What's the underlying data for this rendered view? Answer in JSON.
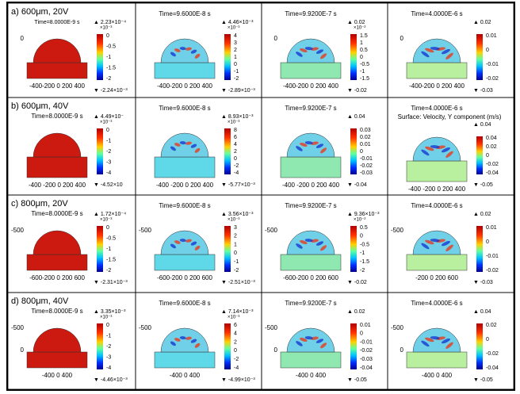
{
  "rows": [
    {
      "label": "a) 600μm, 20V",
      "panels": [
        {
          "time": "Time=8.0000E-9 s",
          "max": "▲ 2.23×10⁻⁴",
          "exp": "×10⁻³",
          "ticks": [
            "0",
            "-0.5",
            "-1",
            "-1.5",
            "-2"
          ],
          "min": "▼ -2.24×10⁻³",
          "yticks": [
            "0"
          ],
          "xticks": "-400-200 0 200 400"
        },
        {
          "time": "Time=9.6000E-8 s",
          "max": "▲ 4.46×10⁻³",
          "exp": "×10⁻³",
          "ticks": [
            "4",
            "3",
            "2",
            "1",
            "0",
            "-1",
            "-2"
          ],
          "min": "▼ -2.89×10⁻³",
          "yticks": [],
          "xticks": "-400-200 0 200 400"
        },
        {
          "time": "Time=9.9200E-7 s",
          "max": "▲ 0.02",
          "exp": "×10⁻²",
          "ticks": [
            "1.5",
            "1",
            "0.5",
            "0",
            "-0.5",
            "-1",
            "-1.5"
          ],
          "min": "▼ -0.02",
          "yticks": [
            "0"
          ],
          "xticks": "-400-200 0 200 400"
        },
        {
          "time": "Time=4.0000E-6 s",
          "max": "▲ 0.02",
          "ticks": [
            "0.01",
            "0",
            "-0.01",
            "-0.02"
          ],
          "min": "▼ -0.03",
          "yticks": [
            "0"
          ],
          "xticks": "-400-200 0 200 400"
        }
      ]
    },
    {
      "label": "b) 600μm, 40V",
      "panels": [
        {
          "time": "Time=8.0000E-9 s",
          "max": "▲ 4.49×10⁻",
          "exp": "×10⁻³",
          "ticks": [
            "0",
            "-1",
            "-2",
            "-3",
            "-4"
          ],
          "min": "▼ -4.52×10",
          "yticks": [],
          "xticks": "-400 -200 0 200 400"
        },
        {
          "time": "Time=9.6000E-8 s",
          "max": "▲ 8.93×10⁻³",
          "exp": "×10⁻³",
          "ticks": [
            "8",
            "6",
            "4",
            "2",
            "0",
            "-2",
            "-4"
          ],
          "min": "▼ -5.77×10⁻³",
          "yticks": [],
          "xticks": "-400 -200 0 200 400"
        },
        {
          "time": "Time=9.9200E-7 s",
          "max": "▲ 0.04",
          "ticks": [
            "0.03",
            "0.02",
            "0.01",
            "0",
            "-0.01",
            "-0.02",
            "-0.03"
          ],
          "min": "▼ -0.04",
          "yticks": [],
          "xticks": "-400 -200 0 200 400"
        },
        {
          "time": "Time=4.0000E-6 s",
          "subtitle": "Surface: Velocity, Y component (m/s)",
          "max": "▲ 0.04",
          "ticks": [
            "0.04",
            "0.02",
            "0",
            "-0.02",
            "-0.04"
          ],
          "min": "▼ -0.05",
          "yticks": [],
          "xticks": "-400 -200 0 200 400"
        }
      ]
    },
    {
      "label": "c) 800μm, 20V",
      "panels": [
        {
          "time": "Time=8.0000E-9 s",
          "max": "▲ 1.72×10⁻⁴",
          "exp": "×10⁻³",
          "ticks": [
            "0",
            "-0.5",
            "-1",
            "-1.5",
            "-2"
          ],
          "min": "▼ -2.31×10⁻³",
          "yticks": [
            "-500"
          ],
          "xticks": "-600-200 0 200 600"
        },
        {
          "time": "Time=9.6000E-8 s",
          "max": "▲ 3.56×10⁻³",
          "exp": "×10⁻³",
          "ticks": [
            "3",
            "2",
            "1",
            "0",
            "-1",
            "-2"
          ],
          "min": "▼ -2.51×10⁻³",
          "yticks": [
            "-500"
          ],
          "xticks": "-600-200 0 200 600"
        },
        {
          "time": "Time=9.9200E-7 s",
          "max": "▲ 9.36×10⁻³",
          "exp": "×10⁻²",
          "ticks": [
            "0.5",
            "0",
            "-0.5",
            "-1",
            "-1.5",
            "-2"
          ],
          "min": "▼ -0.02",
          "yticks": [
            "-500"
          ],
          "xticks": "-600-200 0 200 600"
        },
        {
          "time": "Time=4.0000E-6 s",
          "max": "▲ 0.02",
          "ticks": [
            "0.01",
            "0",
            "-0.01",
            "-0.02"
          ],
          "min": "▼ -0.03",
          "yticks": [
            "-500"
          ],
          "xticks": "-200 0 200 600"
        }
      ]
    },
    {
      "label": "d) 800μm, 40V",
      "panels": [
        {
          "time": "Time=8.0000E-9 s",
          "max": "▲ 3.35×10⁻³",
          "exp": "×10⁻³",
          "ticks": [
            "0",
            "-1",
            "-2",
            "-3",
            "-4"
          ],
          "min": "▼ -4.46×10⁻³",
          "yticks": [
            "-500",
            "0"
          ],
          "xticks": "-400 0 400"
        },
        {
          "time": "Time=9.6000E-8 s",
          "max": "▲ 7.14×10⁻³",
          "exp": "×10⁻³",
          "ticks": [
            "6",
            "4",
            "2",
            "0",
            "-2",
            "-4"
          ],
          "min": "▼ -4.99×10⁻³",
          "yticks": [
            "-500"
          ],
          "xticks": "-400 0 400"
        },
        {
          "time": "Time=9.9200E-7 s",
          "max": "▲ 0.02",
          "ticks": [
            "0.01",
            "0",
            "-0.01",
            "-0.02",
            "-0.03",
            "-0.04"
          ],
          "min": "▼ -0.05",
          "yticks": [
            "-500",
            "0"
          ],
          "xticks": "-400 0 400"
        },
        {
          "time": "Time=4.0000E-6 s",
          "max": "▲ 0.04",
          "ticks": [
            "0.02",
            "0",
            "-0.02",
            "-0.04"
          ],
          "min": "▼ -0.05",
          "yticks": [
            "-500",
            "0"
          ],
          "xticks": "-400 0 400"
        }
      ]
    }
  ]
}
